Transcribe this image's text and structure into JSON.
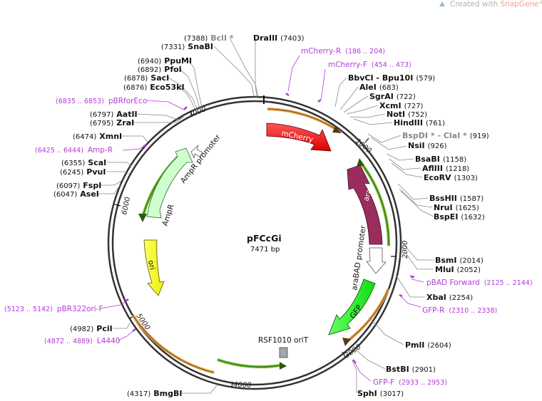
{
  "credit": {
    "prefix": "Created with ",
    "brand": "SnapGene",
    "suffix": "®"
  },
  "plasmid": {
    "name": "pFCcGi",
    "length_label": "7471 bp",
    "length_bp": 7471
  },
  "ticks": [
    {
      "bp": 1000,
      "label": "1000"
    },
    {
      "bp": 2000,
      "label": "2000"
    },
    {
      "bp": 3000,
      "label": "3000"
    },
    {
      "bp": 4000,
      "label": "4000"
    },
    {
      "bp": 5000,
      "label": "5000"
    },
    {
      "bp": 6000,
      "label": "6000"
    },
    {
      "bp": 7000,
      "label": "7000"
    }
  ],
  "sites": [
    {
      "id": "bcli",
      "name": "BclI",
      "star": " *",
      "pos": "(7388)",
      "grey": true
    },
    {
      "id": "drai",
      "name": "DraIII",
      "star": "",
      "pos": "(7403)",
      "grey": false
    },
    {
      "id": "snabi",
      "name": "SnaBI",
      "star": "",
      "pos": "(7331)",
      "grey": false
    },
    {
      "id": "ppumi",
      "name": "PpuMI",
      "star": "",
      "pos": "(6940)",
      "grey": false
    },
    {
      "id": "pfoi",
      "name": "PfoI",
      "star": "",
      "pos": "(6892)",
      "grey": false
    },
    {
      "id": "saci",
      "name": "SacI",
      "star": "",
      "pos": "(6878)",
      "grey": false
    },
    {
      "id": "eco53ki",
      "name": "Eco53kI",
      "star": "",
      "pos": "(6876)",
      "grey": false
    },
    {
      "id": "aatii",
      "name": "AatII",
      "star": "",
      "pos": "(6797)",
      "grey": false
    },
    {
      "id": "zrai",
      "name": "ZraI",
      "star": "",
      "pos": "(6795)",
      "grey": false
    },
    {
      "id": "xmni",
      "name": "XmnI",
      "star": "",
      "pos": "(6474)",
      "grey": false
    },
    {
      "id": "scai",
      "name": "ScaI",
      "star": "",
      "pos": "(6355)",
      "grey": false
    },
    {
      "id": "pvui",
      "name": "PvuI",
      "star": "",
      "pos": "(6245)",
      "grey": false
    },
    {
      "id": "fspi",
      "name": "FspI",
      "star": "",
      "pos": "(6097)",
      "grey": false
    },
    {
      "id": "asei",
      "name": "AseI",
      "star": "",
      "pos": "(6047)",
      "grey": false
    },
    {
      "id": "pcii",
      "name": "PciI",
      "star": "",
      "pos": "(4982)",
      "grey": false
    },
    {
      "id": "bmgbi",
      "name": "BmgBI",
      "star": "",
      "pos": "(4317)",
      "grey": false
    },
    {
      "id": "bbvci",
      "name": "BbvCI - Bpu10I",
      "star": "",
      "pos": "(579)",
      "grey": false
    },
    {
      "id": "alei",
      "name": "AleI",
      "star": "",
      "pos": "(683)",
      "grey": false
    },
    {
      "id": "sgrai",
      "name": "SgrAI",
      "star": "",
      "pos": "(722)",
      "grey": false
    },
    {
      "id": "xcmi",
      "name": "XcmI",
      "star": "",
      "pos": "(727)",
      "grey": false
    },
    {
      "id": "noti",
      "name": "NotI",
      "star": "",
      "pos": "(752)",
      "grey": false
    },
    {
      "id": "hindiii",
      "name": "HindIII",
      "star": "",
      "pos": "(761)",
      "grey": false
    },
    {
      "id": "bspdi",
      "name": "BspDI * - ClaI *",
      "star": "",
      "pos": "(919)",
      "grey": true
    },
    {
      "id": "nsii",
      "name": "NsiI",
      "star": "",
      "pos": "(926)",
      "grey": false
    },
    {
      "id": "bsabi",
      "name": "BsaBI",
      "star": "",
      "pos": "(1158)",
      "grey": false
    },
    {
      "id": "afliii",
      "name": "AflIII",
      "star": "",
      "pos": "(1218)",
      "grey": false
    },
    {
      "id": "ecorv",
      "name": "EcoRV",
      "star": "",
      "pos": "(1303)",
      "grey": false
    },
    {
      "id": "bsshii",
      "name": "BssHII",
      "star": "",
      "pos": "(1587)",
      "grey": false
    },
    {
      "id": "nrui",
      "name": "NruI",
      "star": "",
      "pos": "(1625)",
      "grey": false
    },
    {
      "id": "bspei",
      "name": "BspEI",
      "star": "",
      "pos": "(1632)",
      "grey": false
    },
    {
      "id": "bsmi",
      "name": "BsmI",
      "star": "",
      "pos": "(2014)",
      "grey": false
    },
    {
      "id": "mlui",
      "name": "MluI",
      "star": "",
      "pos": "(2052)",
      "grey": false
    },
    {
      "id": "xbai",
      "name": "XbaI",
      "star": "",
      "pos": "(2254)",
      "grey": false
    },
    {
      "id": "pmli",
      "name": "PmlI",
      "star": "",
      "pos": "(2604)",
      "grey": false
    },
    {
      "id": "bstbi",
      "name": "BstBI",
      "star": "",
      "pos": "(2901)",
      "grey": false
    },
    {
      "id": "sphi",
      "name": "SphI",
      "star": "",
      "pos": "(3017)",
      "grey": false
    }
  ],
  "primers": [
    {
      "id": "mcherry-r",
      "name": "mCherry-R",
      "range": "(186 .. 204)"
    },
    {
      "id": "mcherry-f",
      "name": "mCherry-F",
      "range": "(454 .. 473)"
    },
    {
      "id": "pbrforeco",
      "name": "pBRforEco",
      "range": "(6835 .. 6853)"
    },
    {
      "id": "amp-r",
      "name": "Amp-R",
      "range": "(6425 .. 6444)"
    },
    {
      "id": "pbad-forward",
      "name": "pBAD Forward",
      "range": "(2125 .. 2144)"
    },
    {
      "id": "gfp-r",
      "name": "GFP-R",
      "range": "(2310 .. 2338)"
    },
    {
      "id": "gfp-f",
      "name": "GFP-F",
      "range": "(2933 .. 2953)"
    },
    {
      "id": "pbr322ori-f",
      "name": "pBR322ori-F",
      "range": "(5123 .. 5142)"
    },
    {
      "id": "l4440",
      "name": "L4440",
      "range": "(4872 .. 4889)"
    }
  ],
  "features": [
    {
      "id": "mcherry",
      "label": "mCherry",
      "color": "#ff0000"
    },
    {
      "id": "arac",
      "label": "araC",
      "color": "#9b2d5e"
    },
    {
      "id": "arabad-promoter",
      "label": "araBAD promoter",
      "color": "#ffffff"
    },
    {
      "id": "gfp",
      "label": "GFP",
      "color": "#22ee22"
    },
    {
      "id": "ori",
      "label": "ori",
      "color": "#ffff00"
    },
    {
      "id": "ampr",
      "label": "AmpR",
      "color": "#cfffcf"
    },
    {
      "id": "ampr-promoter",
      "label": "AmpR promoter",
      "color": "#ffffff"
    },
    {
      "id": "rsf1010-orit",
      "label": "RSF1010 oriT",
      "color": "#a0a8b0"
    }
  ]
}
